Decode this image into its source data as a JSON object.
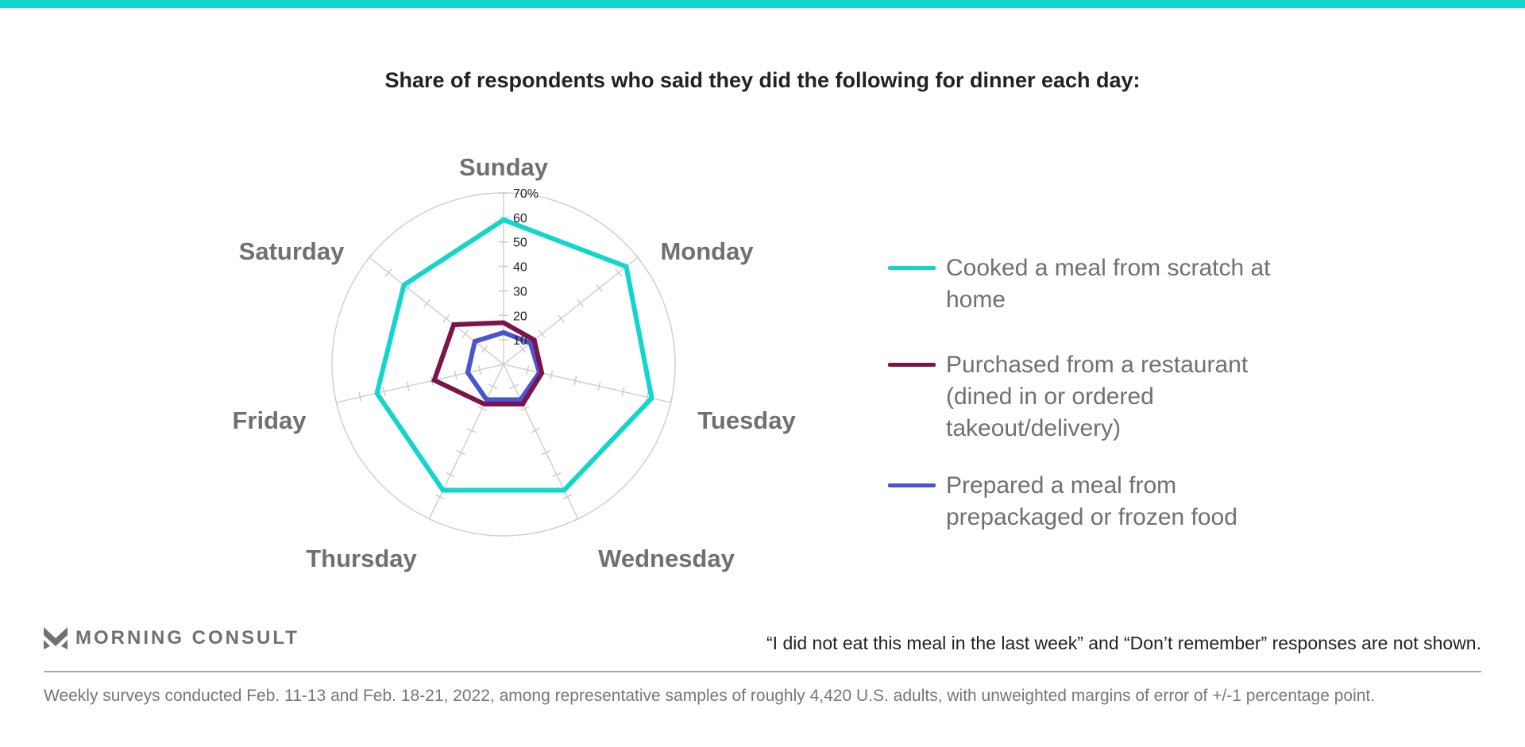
{
  "title": "Share of respondents who said they did the following for dinner each day:",
  "colors": {
    "accent": "#12d6cb",
    "cooked": "#12d6cb",
    "restaurant": "#7b1448",
    "prepared": "#4a55cf",
    "grid": "#cccccc"
  },
  "chart_data": {
    "type": "radar",
    "title": "Share of respondents who said they did the following for dinner each day:",
    "categories": [
      "Sunday",
      "Monday",
      "Tuesday",
      "Wednesday",
      "Thursday",
      "Friday",
      "Saturday"
    ],
    "rlim": [
      0,
      70
    ],
    "ticks": [
      "10",
      "20",
      "30",
      "40",
      "50",
      "60",
      "70%"
    ],
    "tick_values": [
      10,
      20,
      30,
      40,
      50,
      60,
      70
    ],
    "legend_position": "right",
    "series": [
      {
        "name": "Cooked a meal from scratch at home",
        "values": [
          59,
          64,
          62,
          57,
          57,
          53,
          52
        ]
      },
      {
        "name": "Purchased from a restaurant (dined in or ordered takeout/delivery)",
        "values": [
          17,
          16,
          16,
          18,
          18,
          29,
          26
        ]
      },
      {
        "name": "Prepared a meal from prepackaged or frozen food",
        "values": [
          13,
          14,
          15,
          16,
          16,
          15,
          15
        ]
      }
    ]
  },
  "brand": "MORNING CONSULT",
  "note": "“I did not eat this meal in the last week” and “Don’t remember” responses are not shown.",
  "footnote": "Weekly surveys conducted Feb. 11-13 and Feb. 18-21, 2022, among representative samples of roughly 4,420 U.S. adults, with unweighted margins of error of +/-1 percentage point."
}
